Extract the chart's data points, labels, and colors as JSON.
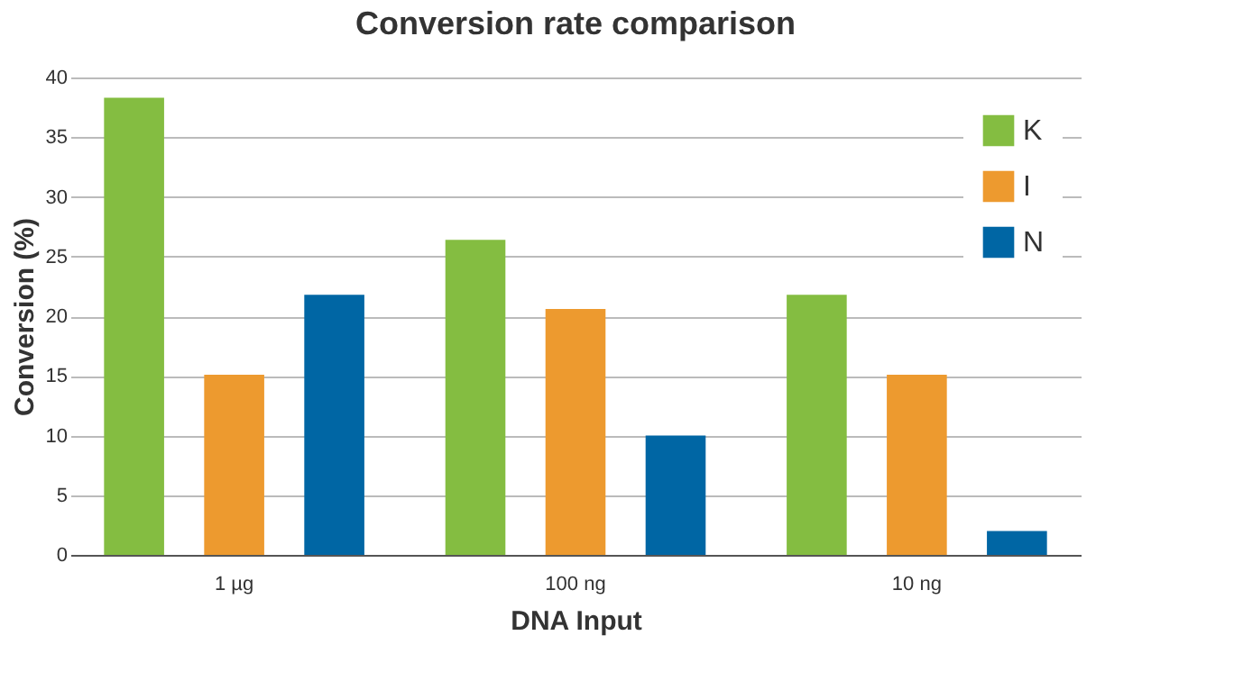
{
  "chart_data": {
    "type": "bar",
    "title": "Conversion rate comparison",
    "xlabel": "DNA Input",
    "ylabel": "Conversion (%)",
    "categories": [
      "1 µg",
      "100 ng",
      "10 ng"
    ],
    "series": [
      {
        "name": "K",
        "color": "#84bd41",
        "values": [
          38.3,
          26.4,
          21.8
        ]
      },
      {
        "name": "I",
        "color": "#ed9a2f",
        "values": [
          15.1,
          20.6,
          15.1
        ]
      },
      {
        "name": "N",
        "color": "#0066a4",
        "values": [
          21.8,
          10,
          2
        ]
      }
    ],
    "ylim": [
      0,
      40
    ],
    "yticks": [
      0,
      5,
      10,
      15,
      20,
      25,
      30,
      35,
      40
    ],
    "grid": "y",
    "legend": "top right"
  }
}
